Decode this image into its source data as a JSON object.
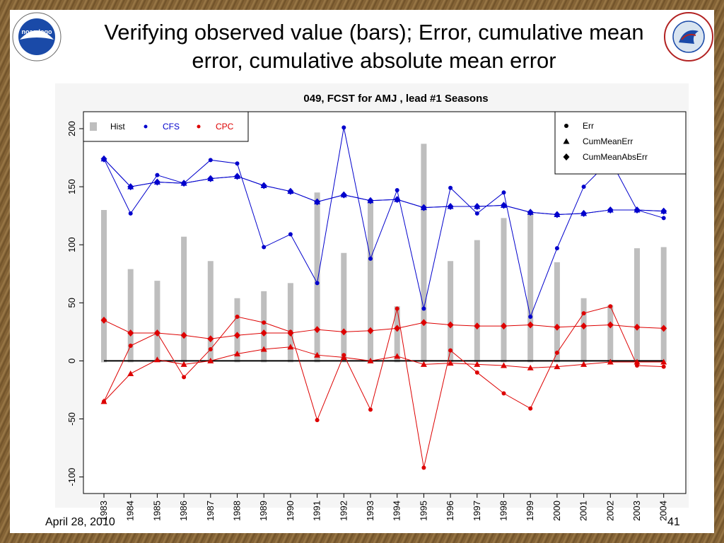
{
  "slide": {
    "title_line1": "Verifying observed value (bars); Error, cumulative mean",
    "title_line2": "error, cumulative absolute mean error",
    "footer_date": "April 28, 2010",
    "page_number": "41",
    "left_logo": "noaa-logo",
    "right_logo": "national-weather-service-logo",
    "right_logo_text": "NATIONAL WEATHER SERVICE"
  },
  "chart_data": {
    "type": "line",
    "title": "049, FCST for AMJ , lead #1 Seasons",
    "xlabel": "",
    "ylabel": "",
    "ylim": [
      -100,
      200
    ],
    "yticks": [
      -100,
      -50,
      0,
      50,
      100,
      150,
      200
    ],
    "categories": [
      "1983",
      "1984",
      "1985",
      "1986",
      "1987",
      "1988",
      "1989",
      "1990",
      "1991",
      "1992",
      "1993",
      "1994",
      "1995",
      "1996",
      "1997",
      "1998",
      "1999",
      "2000",
      "2001",
      "2002",
      "2003",
      "2004"
    ],
    "legend_left": {
      "position": "top-left",
      "entries": [
        {
          "label": "Hist",
          "color": "#bebebe",
          "symbol": "bar"
        },
        {
          "label": "CFS",
          "color": "#0000cc",
          "symbol": "point"
        },
        {
          "label": "CPC",
          "color": "#dd0000",
          "symbol": "point"
        }
      ]
    },
    "legend_right": {
      "position": "top-right",
      "entries": [
        {
          "label": "Err",
          "symbol": "circle"
        },
        {
          "label": "CumMeanErr",
          "symbol": "triangle"
        },
        {
          "label": "CumMeanAbsErr",
          "symbol": "diamond"
        }
      ]
    },
    "hist": [
      130,
      79,
      69,
      107,
      86,
      54,
      60,
      67,
      145,
      93,
      138,
      47,
      187,
      86,
      104,
      123,
      129,
      85,
      54,
      48,
      97,
      98
    ],
    "series": [
      {
        "name": "CFS",
        "metric": "Err",
        "color": "#0000cc",
        "marker": "circle",
        "values": [
          174,
          127,
          160,
          153,
          173,
          170,
          98,
          109,
          67,
          201,
          88,
          147,
          45,
          149,
          127,
          145,
          38,
          97,
          150,
          173,
          130,
          123
        ]
      },
      {
        "name": "CFS",
        "metric": "CumMeanErr",
        "color": "#0000cc",
        "marker": "triangle",
        "values": [
          174,
          150,
          154,
          153,
          157,
          159,
          151,
          146,
          137,
          143,
          138,
          139,
          132,
          133,
          133,
          134,
          128,
          126,
          127,
          130,
          130,
          129
        ]
      },
      {
        "name": "CFS",
        "metric": "CumMeanAbsErr",
        "color": "#0000cc",
        "marker": "diamond",
        "values": [
          174,
          150,
          154,
          153,
          157,
          159,
          151,
          146,
          137,
          143,
          138,
          139,
          132,
          133,
          133,
          134,
          128,
          126,
          127,
          130,
          130,
          129
        ]
      },
      {
        "name": "CPC",
        "metric": "Err",
        "color": "#dd0000",
        "marker": "circle",
        "values": [
          -35,
          13,
          24,
          -14,
          10,
          38,
          33,
          25,
          -51,
          5,
          -42,
          45,
          -92,
          9,
          -10,
          -28,
          -41,
          7,
          41,
          47,
          -4,
          -5
        ]
      },
      {
        "name": "CPC",
        "metric": "CumMeanErr",
        "color": "#dd0000",
        "marker": "triangle",
        "values": [
          -35,
          -11,
          1,
          -3,
          0,
          6,
          10,
          12,
          5,
          3,
          0,
          4,
          -3,
          -2,
          -3,
          -4,
          -6,
          -5,
          -3,
          -1,
          -1,
          -1
        ]
      },
      {
        "name": "CPC",
        "metric": "CumMeanAbsErr",
        "color": "#dd0000",
        "marker": "diamond",
        "values": [
          35,
          24,
          24,
          22,
          19,
          22,
          24,
          24,
          27,
          25,
          26,
          28,
          33,
          31,
          30,
          30,
          31,
          29,
          30,
          31,
          29,
          28
        ]
      }
    ],
    "zero_line": 0,
    "grid": false
  }
}
